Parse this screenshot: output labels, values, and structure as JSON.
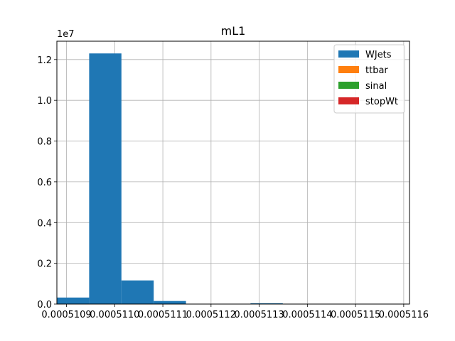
{
  "chart_data": {
    "type": "bar",
    "title": "mL1",
    "xlabel": "",
    "ylabel": "",
    "y_offset_label": "1e7",
    "grid": true,
    "legend_position": "top-right",
    "xlim": [
      0.00051088,
      0.000511612
    ],
    "ylim": [
      0,
      12900000
    ],
    "x_ticks": [
      {
        "value": 0.0005109,
        "label": "0.0005109"
      },
      {
        "value": 0.000511,
        "label": "0.0005110"
      },
      {
        "value": 0.0005111,
        "label": "0.0005111"
      },
      {
        "value": 0.0005112,
        "label": "0.0005112"
      },
      {
        "value": 0.0005113,
        "label": "0.0005113"
      },
      {
        "value": 0.0005114,
        "label": "0.0005114"
      },
      {
        "value": 0.0005115,
        "label": "0.0005115"
      },
      {
        "value": 0.0005116,
        "label": "0.0005116"
      }
    ],
    "y_ticks": [
      {
        "value": 0,
        "label": "0.0"
      },
      {
        "value": 2000000,
        "label": "0.2"
      },
      {
        "value": 4000000,
        "label": "0.4"
      },
      {
        "value": 6000000,
        "label": "0.6"
      },
      {
        "value": 8000000,
        "label": "0.8"
      },
      {
        "value": 10000000,
        "label": "1.0"
      },
      {
        "value": 12000000,
        "label": "1.2"
      }
    ],
    "series": [
      {
        "name": "WJets",
        "color": "#1f77b4",
        "bins": [
          {
            "x0": 0.00051088,
            "x1": 0.000510947,
            "value": 320000
          },
          {
            "x0": 0.000510947,
            "x1": 0.000511014,
            "value": 12300000
          },
          {
            "x0": 0.000511014,
            "x1": 0.000511081,
            "value": 1160000
          },
          {
            "x0": 0.000511081,
            "x1": 0.000511148,
            "value": 150000
          },
          {
            "x0": 0.000511148,
            "x1": 0.000511215,
            "value": 5000
          },
          {
            "x0": 0.000511215,
            "x1": 0.000511282,
            "value": 3000
          },
          {
            "x0": 0.000511282,
            "x1": 0.000511349,
            "value": 40000
          },
          {
            "x0": 0.000511349,
            "x1": 0.000511416,
            "value": 3000
          },
          {
            "x0": 0.000511416,
            "x1": 0.000511483,
            "value": 2000
          },
          {
            "x0": 0.000511483,
            "x1": 0.00051155,
            "value": 2000
          }
        ]
      },
      {
        "name": "ttbar",
        "color": "#ff7f0e",
        "bins": []
      },
      {
        "name": "sinal",
        "color": "#2ca02c",
        "bins": []
      },
      {
        "name": "stopWt",
        "color": "#d62728",
        "bins": []
      }
    ]
  }
}
